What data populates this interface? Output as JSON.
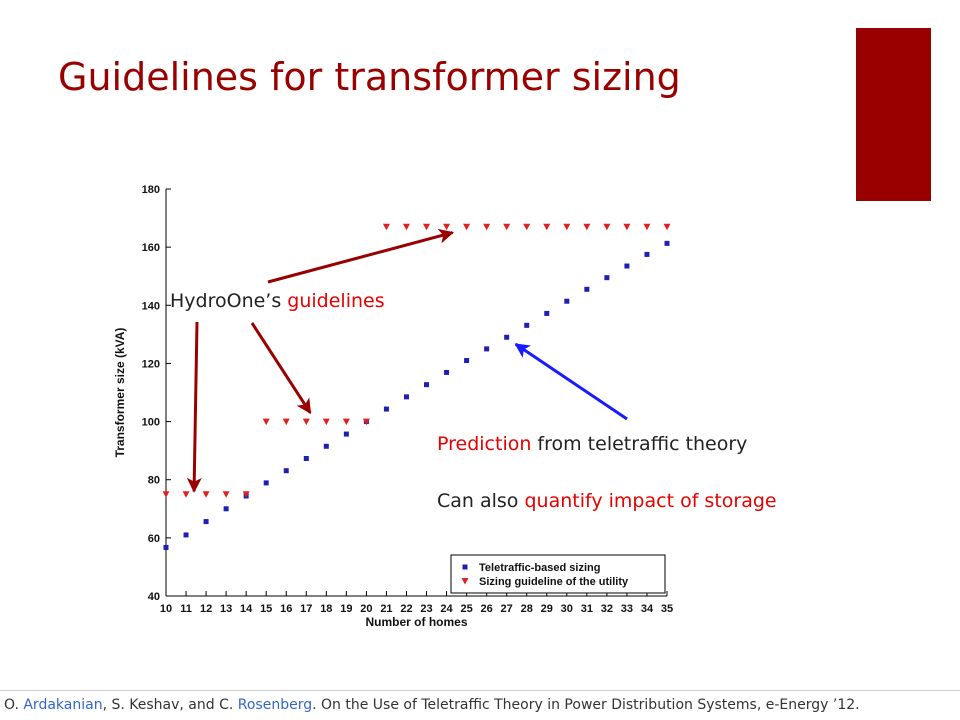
{
  "slide": {
    "title": "Guidelines for transformer sizing",
    "accent_color": "#990000"
  },
  "callouts": {
    "hydro_prefix": "HydroOne’s ",
    "hydro_highlight": "guidelines",
    "prediction_highlight": "Prediction",
    "prediction_rest": " from teletraffic theory",
    "storage_prefix": "Can also ",
    "storage_highlight": "quantify impact of storage"
  },
  "footer": {
    "p1": "O. ",
    "author1": "Ardakanian",
    "p2": ", S. Keshav, and C. ",
    "author3": "Rosenberg",
    "p3": ". On the Use of Teletraffic Theory in Power Distribution Systems, e-Energy ’12."
  },
  "chart_data": {
    "type": "scatter",
    "xlabel": "Number of homes",
    "ylabel": "Transformer size (kVA)",
    "xlim": [
      10,
      35
    ],
    "ylim": [
      40,
      180
    ],
    "xticks": [
      10,
      11,
      12,
      13,
      14,
      15,
      16,
      17,
      18,
      19,
      20,
      21,
      22,
      23,
      24,
      25,
      26,
      27,
      28,
      29,
      30,
      31,
      32,
      33,
      34,
      35
    ],
    "yticks": [
      40,
      60,
      80,
      100,
      120,
      140,
      160,
      180
    ],
    "legend_position": "bottom-right",
    "series": [
      {
        "name": "Teletraffic-based sizing",
        "marker": "square",
        "color": "#1f1fb4",
        "x": [
          10,
          11,
          12,
          13,
          14,
          15,
          16,
          17,
          18,
          19,
          20,
          21,
          22,
          23,
          24,
          25,
          26,
          27,
          28,
          29,
          30,
          31,
          32,
          33,
          34,
          35
        ],
        "y": [
          56.7,
          61,
          65.6,
          70,
          74.4,
          78.9,
          83.1,
          87.3,
          91.5,
          95.7,
          100,
          104.3,
          108.5,
          112.7,
          116.9,
          121,
          125,
          129,
          133.1,
          137.2,
          141.4,
          145.5,
          149.5,
          153.5,
          157.5,
          161.3
        ]
      },
      {
        "name": "Sizing guideline of the utility",
        "marker": "triangle-down",
        "color": "#e02020",
        "x": [
          10,
          11,
          12,
          13,
          14,
          15,
          16,
          17,
          18,
          19,
          20,
          21,
          22,
          23,
          24,
          25,
          26,
          27,
          28,
          29,
          30,
          31,
          32,
          33,
          34,
          35
        ],
        "y": [
          75,
          75,
          75,
          75,
          75,
          100,
          100,
          100,
          100,
          100,
          100,
          167,
          167,
          167,
          167,
          167,
          167,
          167,
          167,
          167,
          167,
          167,
          167,
          167,
          167,
          167
        ]
      }
    ]
  },
  "annotations": {
    "hydro_arrows_color": "#990000",
    "hydro_arrow_targets": [
      {
        "x": 11.4,
        "y": 76
      },
      {
        "x": 17.2,
        "y": 103
      },
      {
        "x": 24.3,
        "y": 165
      }
    ],
    "prediction_arrow_color": "#1a1aff",
    "prediction_arrow_target": {
      "x": 27.3,
      "y": 128
    }
  }
}
